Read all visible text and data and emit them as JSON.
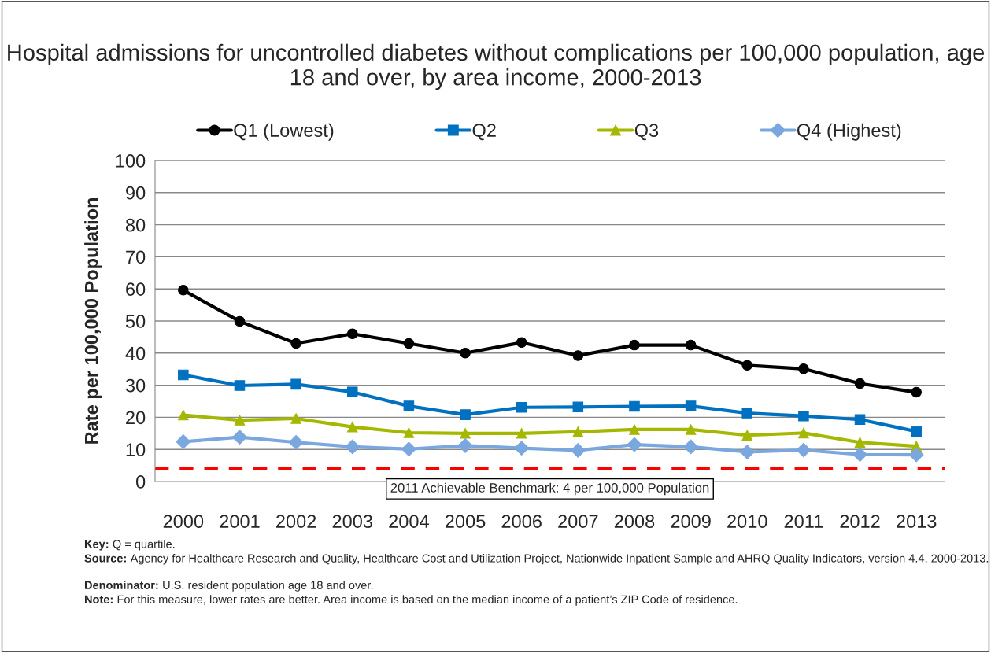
{
  "chart_data": {
    "type": "line",
    "title": "Hospital admissions for uncontrolled diabetes without complications per 100,000 population, age 18 and over, by area income, 2000-2013",
    "ylabel": "Rate per 100,000 Population",
    "categories": [
      "2000",
      "2001",
      "2002",
      "2003",
      "2004",
      "2005",
      "2006",
      "2007",
      "2008",
      "2009",
      "2010",
      "2011",
      "2012",
      "2013"
    ],
    "series": [
      {
        "name": "Q1 (Lowest)",
        "color": "#000000",
        "marker": "circle",
        "values": [
          59.6,
          49.9,
          43.0,
          46.0,
          43.0,
          40.0,
          43.3,
          39.2,
          42.5,
          42.5,
          36.2,
          35.1,
          30.5,
          27.8
        ]
      },
      {
        "name": "Q2",
        "color": "#0070c0",
        "marker": "square",
        "values": [
          33.2,
          29.9,
          30.3,
          27.9,
          23.5,
          20.8,
          23.1,
          23.2,
          23.4,
          23.5,
          21.3,
          20.4,
          19.3,
          15.6
        ]
      },
      {
        "name": "Q3",
        "color": "#a5b800",
        "marker": "triangle",
        "values": [
          20.7,
          19.1,
          19.6,
          17.0,
          15.2,
          15.0,
          15.0,
          15.5,
          16.2,
          16.2,
          14.4,
          15.1,
          12.2,
          11.0
        ]
      },
      {
        "name": "Q4 (Highest)",
        "color": "#7ba7df",
        "marker": "diamond",
        "values": [
          12.4,
          13.8,
          12.2,
          10.8,
          10.1,
          11.2,
          10.4,
          9.7,
          11.5,
          10.8,
          9.2,
          9.8,
          8.4,
          8.3
        ]
      }
    ],
    "ylim": [
      0,
      100
    ],
    "yticks": [
      0,
      10,
      20,
      30,
      40,
      50,
      60,
      70,
      80,
      90,
      100
    ],
    "grid": "y",
    "legend": "top",
    "ref_lines": [
      {
        "axis": "y",
        "value": 4,
        "label": "2011 Achievable Benchmark: 4 per 100,000 Population",
        "color": "#ff0000",
        "line_style": "dashed"
      }
    ],
    "annotations": [
      "Key: Q = quartile.",
      "Source: Agency for Healthcare Research and Quality, Healthcare Cost and Utilization Project, Nationwide Inpatient Sample and AHRQ Quality Indicators, version 4.4, 2000-2013.",
      "Denominator: U.S. resident population age 18 and over.",
      "Note: For this measure, lower rates are better. Area income is based on the median income of a patient’s ZIP Code of residence."
    ]
  }
}
